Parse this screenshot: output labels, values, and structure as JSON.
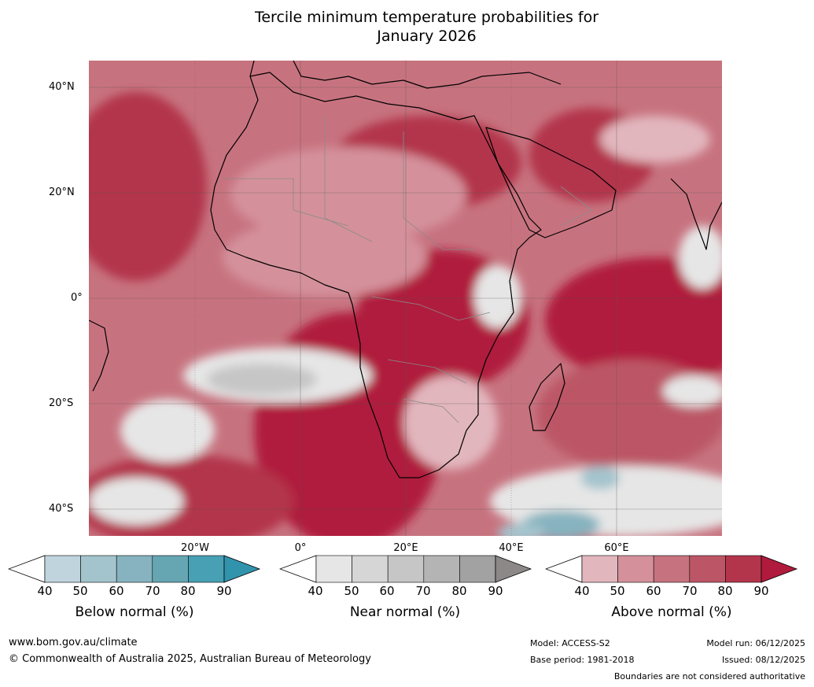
{
  "title": {
    "line1": "Tercile minimum temperature probabilities for",
    "line2": "January 2026"
  },
  "map": {
    "lat_labels": [
      "40°N",
      "20°N",
      "0°",
      "20°S",
      "40°S"
    ],
    "lon_labels": [
      "20°W",
      "0°",
      "20°E",
      "40°E",
      "60°E"
    ],
    "colors": {
      "above": [
        "#e2b6bd",
        "#d4919b",
        "#c7737f",
        "#bc5666",
        "#b3354c",
        "#b01a3c"
      ],
      "near": [
        "#e6e6e6",
        "#d6d6d6",
        "#c6c6c6",
        "#b4b4b4",
        "#a2a2a2",
        "#8c8888"
      ],
      "below": [
        "#bfd4dc",
        "#a4c4cd",
        "#86b3bf",
        "#66a6b3",
        "#47a0b4",
        "#3293ac"
      ],
      "land_border": "#000000",
      "country_border": "#8a8a8a"
    }
  },
  "legends": [
    {
      "id": "below",
      "title": "Below normal (%)",
      "ticks": [
        "40",
        "50",
        "60",
        "70",
        "80",
        "90"
      ],
      "colors": [
        "#bfd4dc",
        "#a4c4cd",
        "#86b3bf",
        "#66a6b3",
        "#47a0b4",
        "#3293ac"
      ]
    },
    {
      "id": "near",
      "title": "Near normal (%)",
      "ticks": [
        "40",
        "50",
        "60",
        "70",
        "80",
        "90"
      ],
      "colors": [
        "#e6e6e6",
        "#d6d6d6",
        "#c6c6c6",
        "#b4b4b4",
        "#a2a2a2",
        "#8c8888"
      ]
    },
    {
      "id": "above",
      "title": "Above normal (%)",
      "ticks": [
        "40",
        "50",
        "60",
        "70",
        "80",
        "90"
      ],
      "colors": [
        "#e2b6bd",
        "#d4919b",
        "#c7737f",
        "#bc5666",
        "#b3354c",
        "#b01a3c"
      ]
    }
  ],
  "footer": {
    "url": "www.bom.gov.au/climate",
    "copyright": "© Commonwealth of Australia 2025, Australian Bureau of Meteorology",
    "model": "Model: ACCESS-S2",
    "base_period": "Base period: 1981-2018",
    "model_run": "Model run: 06/12/2025",
    "issued": "Issued: 08/12/2025",
    "note": "Boundaries are not considered authoritative"
  }
}
